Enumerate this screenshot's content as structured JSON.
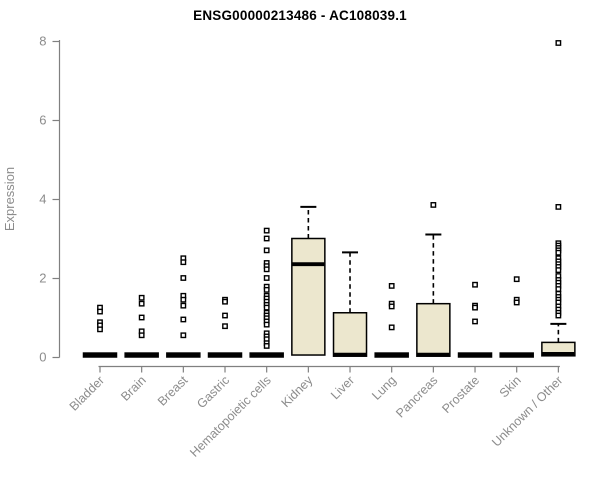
{
  "chart_data": {
    "type": "boxplot",
    "title": "ENSG00000213486 - AC108039.1",
    "xlabel": "",
    "ylabel": "Expression",
    "ylim": [
      0,
      8
    ],
    "yticks": [
      0,
      2,
      4,
      6,
      8
    ],
    "grid": false,
    "legend": "none",
    "categories": [
      "Bladder",
      "Brain",
      "Breast",
      "Gastric",
      "Hematopoietic cells",
      "Kidney",
      "Liver",
      "Lung",
      "Pancreas",
      "Prostate",
      "Skin",
      "Unknown / Other"
    ],
    "series": [
      {
        "name": "Bladder",
        "q1": 0,
        "median": 0.04,
        "q3": 0.1,
        "whisker_low": 0,
        "whisker_high": 0.1,
        "outliers": [
          1.25,
          1.15,
          0.88,
          0.8,
          0.7
        ]
      },
      {
        "name": "Brain",
        "q1": 0,
        "median": 0.04,
        "q3": 0.1,
        "whisker_low": 0,
        "whisker_high": 0.1,
        "outliers": [
          1.5,
          1.35,
          1.0,
          0.65,
          0.55
        ]
      },
      {
        "name": "Breast",
        "q1": 0,
        "median": 0.04,
        "q3": 0.1,
        "whisker_low": 0,
        "whisker_high": 0.1,
        "outliers": [
          2.5,
          2.4,
          2.0,
          1.55,
          1.45,
          1.3,
          0.95,
          0.55
        ]
      },
      {
        "name": "Gastric",
        "q1": 0,
        "median": 0.04,
        "q3": 0.1,
        "whisker_low": 0,
        "whisker_high": 0.1,
        "outliers": [
          1.45,
          1.4,
          1.05,
          0.78
        ]
      },
      {
        "name": "Hematopoietic cells",
        "q1": 0,
        "median": 0.04,
        "q3": 0.1,
        "whisker_low": 0,
        "whisker_high": 0.1,
        "outliers": [
          3.2,
          3.0,
          2.7,
          2.38,
          2.3,
          2.22,
          2.0,
          1.78,
          1.7,
          1.55,
          1.48,
          1.4,
          1.32,
          1.25,
          1.12,
          1.05,
          0.98,
          0.9,
          0.82,
          0.6,
          0.52,
          0.45,
          0.35,
          0.28
        ]
      },
      {
        "name": "Kidney",
        "q1": 0.05,
        "median": 2.35,
        "q3": 3.0,
        "whisker_low": 0,
        "whisker_high": 3.8,
        "outliers": []
      },
      {
        "name": "Liver",
        "q1": 0.02,
        "median": 0.06,
        "q3": 1.12,
        "whisker_low": 0,
        "whisker_high": 2.65,
        "outliers": []
      },
      {
        "name": "Lung",
        "q1": 0,
        "median": 0.04,
        "q3": 0.1,
        "whisker_low": 0,
        "whisker_high": 0.1,
        "outliers": [
          1.8,
          1.35,
          1.28,
          0.75
        ]
      },
      {
        "name": "Pancreas",
        "q1": 0.02,
        "median": 0.06,
        "q3": 1.35,
        "whisker_low": 0,
        "whisker_high": 3.1,
        "outliers": [
          3.85
        ]
      },
      {
        "name": "Prostate",
        "q1": 0,
        "median": 0.04,
        "q3": 0.1,
        "whisker_low": 0,
        "whisker_high": 0.1,
        "outliers": [
          1.83,
          1.3,
          1.25,
          0.9
        ]
      },
      {
        "name": "Skin",
        "q1": 0,
        "median": 0.04,
        "q3": 0.1,
        "whisker_low": 0,
        "whisker_high": 0.1,
        "outliers": [
          1.97,
          1.45,
          1.38
        ]
      },
      {
        "name": "Unknown / Other",
        "q1": 0.03,
        "median": 0.08,
        "q3": 0.37,
        "whisker_low": 0,
        "whisker_high": 0.84,
        "outliers": [
          7.95,
          3.8,
          2.88,
          2.82,
          2.76,
          2.7,
          2.64,
          2.5,
          2.42,
          2.35,
          2.28,
          2.2,
          2.05,
          1.95,
          1.88,
          1.8,
          1.72,
          1.6,
          1.52,
          1.45,
          1.38,
          1.28,
          1.2,
          1.12,
          1.05
        ]
      }
    ],
    "colors": {
      "background": "#FFFFFF",
      "box_fill": "#ECE7CE",
      "box_stroke": "#000000",
      "median": "#000000",
      "whisker": "#000000",
      "outlier_stroke": "#000000",
      "outlier_fill": "#FFFFFF",
      "axis": "#808080",
      "tick_label": "#8C8C8C",
      "title": "#000000"
    }
  }
}
